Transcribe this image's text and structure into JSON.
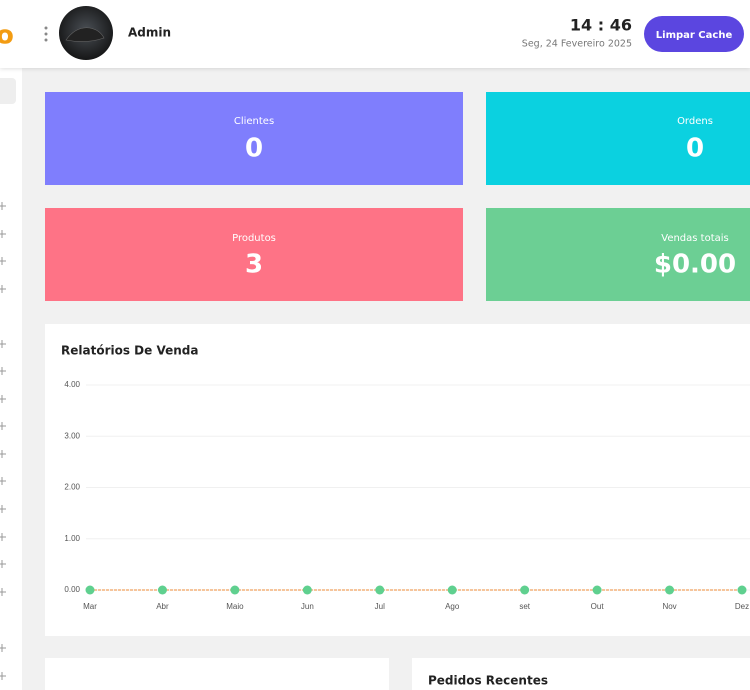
{
  "header": {
    "logo": "o",
    "user": "Admin",
    "time": "14 : 46",
    "date": "Seg, 24 Fevereiro 2025",
    "button": "Limpar Cache"
  },
  "stats": [
    {
      "label": "Clientes",
      "value": "0"
    },
    {
      "label": "Ordens",
      "value": "0"
    },
    {
      "label": "Produtos",
      "value": "3"
    },
    {
      "label": "Vendas totais",
      "value": "$0.00"
    }
  ],
  "chart_data": {
    "type": "line",
    "title": "Relatórios De Venda",
    "categories": [
      "Mar",
      "Abr",
      "Maio",
      "Jun",
      "Jul",
      "Ago",
      "set",
      "Out",
      "Nov",
      "Dez"
    ],
    "values": [
      0,
      0,
      0,
      0,
      0,
      0,
      0,
      0,
      0,
      0
    ],
    "color": "#f3b27a",
    "marker_color": "#5fd08f",
    "ylim": [
      0,
      4
    ],
    "yticks": [
      {
        "value": 0,
        "label": "0.00"
      },
      {
        "value": 1,
        "label": "1.00"
      },
      {
        "value": 2,
        "label": "2.00"
      },
      {
        "value": 3,
        "label": "3.00"
      },
      {
        "value": 4,
        "label": "4.00"
      }
    ],
    "grid": true
  },
  "panels": {
    "recent_orders": "Pedidos Recentes"
  }
}
